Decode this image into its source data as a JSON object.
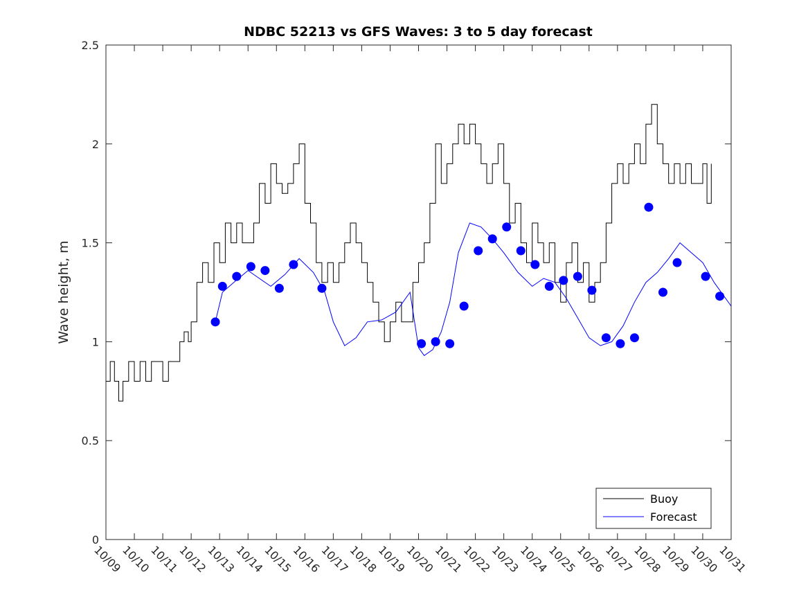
{
  "chart_data": {
    "type": "line",
    "title": "NDBC 52213 vs GFS Waves: 3 to 5 day forecast",
    "xlabel": "",
    "ylabel": "Wave height, m",
    "xlim": [
      0,
      22
    ],
    "ylim": [
      0,
      2.5
    ],
    "yticks": [
      0,
      0.5,
      1,
      1.5,
      2,
      2.5
    ],
    "ytick_labels": [
      "0",
      "0.5",
      "1",
      "1.5",
      "2",
      "2.5"
    ],
    "xtick_labels": [
      "10/09",
      "10/10",
      "10/11",
      "10/12",
      "10/13",
      "10/14",
      "10/15",
      "10/16",
      "10/17",
      "10/18",
      "10/19",
      "10/20",
      "10/21",
      "10/22",
      "10/23",
      "10/24",
      "10/25",
      "10/26",
      "10/27",
      "10/28",
      "10/29",
      "10/30",
      "10/31"
    ],
    "legend": {
      "location": "bottom-right",
      "entries": [
        "Buoy",
        "Forecast"
      ]
    },
    "colors": {
      "buoy": "#000000",
      "forecast": "#0000ff",
      "axis": "#262626"
    },
    "series": [
      {
        "name": "Buoy",
        "x": [
          0,
          0.15,
          0.3,
          0.45,
          0.6,
          0.8,
          1.0,
          1.2,
          1.4,
          1.6,
          1.8,
          2.0,
          2.2,
          2.4,
          2.6,
          2.75,
          2.9,
          3.0,
          3.2,
          3.4,
          3.6,
          3.8,
          4.0,
          4.2,
          4.4,
          4.6,
          4.8,
          5.0,
          5.2,
          5.4,
          5.6,
          5.8,
          6.0,
          6.2,
          6.4,
          6.6,
          6.8,
          7.0,
          7.2,
          7.4,
          7.6,
          7.8,
          8.0,
          8.2,
          8.4,
          8.6,
          8.8,
          9.0,
          9.2,
          9.4,
          9.6,
          9.8,
          10.0,
          10.2,
          10.4,
          10.6,
          10.8,
          11.0,
          11.2,
          11.4,
          11.6,
          11.8,
          12.0,
          12.2,
          12.4,
          12.6,
          12.8,
          13.0,
          13.2,
          13.4,
          13.6,
          13.8,
          14.0,
          14.2,
          14.4,
          14.6,
          14.8,
          15.0,
          15.2,
          15.4,
          15.6,
          15.8,
          16.0,
          16.2,
          16.4,
          16.6,
          16.8,
          17.0,
          17.2,
          17.4,
          17.6,
          17.8,
          18.0,
          18.2,
          18.4,
          18.6,
          18.8,
          19.0,
          19.2,
          19.4,
          19.6,
          19.8,
          20.0,
          20.2,
          20.4,
          20.6,
          20.8,
          21.0,
          21.15,
          21.3
        ],
        "values": [
          0.8,
          0.9,
          0.8,
          0.7,
          0.8,
          0.9,
          0.8,
          0.9,
          0.8,
          0.9,
          0.9,
          0.8,
          0.9,
          0.9,
          1.0,
          1.05,
          1.0,
          1.1,
          1.3,
          1.4,
          1.3,
          1.5,
          1.4,
          1.6,
          1.5,
          1.6,
          1.5,
          1.5,
          1.6,
          1.8,
          1.7,
          1.9,
          1.8,
          1.75,
          1.8,
          1.9,
          2.0,
          1.7,
          1.6,
          1.4,
          1.3,
          1.4,
          1.3,
          1.4,
          1.5,
          1.6,
          1.5,
          1.4,
          1.3,
          1.2,
          1.1,
          1.0,
          1.1,
          1.2,
          1.1,
          1.1,
          1.3,
          1.4,
          1.5,
          1.7,
          2.0,
          1.8,
          1.9,
          2.0,
          2.1,
          2.0,
          2.1,
          2.0,
          1.9,
          1.8,
          1.9,
          2.0,
          1.8,
          1.6,
          1.7,
          1.5,
          1.4,
          1.6,
          1.5,
          1.4,
          1.5,
          1.3,
          1.2,
          1.4,
          1.5,
          1.3,
          1.4,
          1.2,
          1.3,
          1.4,
          1.6,
          1.8,
          1.9,
          1.8,
          1.9,
          2.0,
          1.9,
          2.1,
          2.2,
          2.0,
          1.9,
          1.8,
          1.9,
          1.8,
          1.9,
          1.8,
          1.8,
          1.9,
          1.7,
          1.9
        ]
      },
      {
        "name": "Forecast",
        "x": [
          3.85,
          4.1,
          4.5,
          5.0,
          5.4,
          5.8,
          6.3,
          6.8,
          7.3,
          7.7,
          8.0,
          8.4,
          8.8,
          9.2,
          9.7,
          10.2,
          10.7,
          11.0,
          11.2,
          11.5,
          11.8,
          12.1,
          12.4,
          12.8,
          13.2,
          13.6,
          14.0,
          14.5,
          15.0,
          15.4,
          15.8,
          16.2,
          16.6,
          17.0,
          17.4,
          17.8,
          18.2,
          18.6,
          19.0,
          19.4,
          19.8,
          20.2,
          20.6,
          21.0,
          21.4,
          21.8,
          22.0
        ],
        "values": [
          1.1,
          1.25,
          1.3,
          1.36,
          1.32,
          1.28,
          1.34,
          1.42,
          1.35,
          1.25,
          1.1,
          0.98,
          1.02,
          1.1,
          1.11,
          1.15,
          1.25,
          0.97,
          0.93,
          0.96,
          1.05,
          1.2,
          1.45,
          1.6,
          1.58,
          1.52,
          1.45,
          1.35,
          1.28,
          1.32,
          1.3,
          1.22,
          1.12,
          1.02,
          0.98,
          1.0,
          1.08,
          1.2,
          1.3,
          1.35,
          1.42,
          1.5,
          1.45,
          1.4,
          1.3,
          1.22,
          1.18
        ],
        "markers": {
          "x": [
            3.85,
            4.1,
            4.6,
            5.1,
            5.6,
            6.1,
            6.6,
            7.6,
            11.1,
            11.6,
            12.1,
            12.6,
            13.1,
            13.6,
            14.1,
            14.6,
            15.1,
            15.6,
            16.1,
            16.6,
            17.1,
            17.6,
            18.1,
            18.6,
            19.1,
            19.6,
            20.1,
            21.1,
            21.6
          ],
          "values": [
            1.1,
            1.28,
            1.33,
            1.38,
            1.36,
            1.27,
            1.39,
            1.27,
            0.99,
            1.0,
            0.99,
            1.18,
            1.46,
            1.52,
            1.58,
            1.46,
            1.39,
            1.28,
            1.31,
            1.33,
            1.26,
            1.02,
            0.99,
            1.02,
            1.68,
            1.25,
            1.4,
            1.33,
            1.23
          ]
        }
      }
    ]
  }
}
